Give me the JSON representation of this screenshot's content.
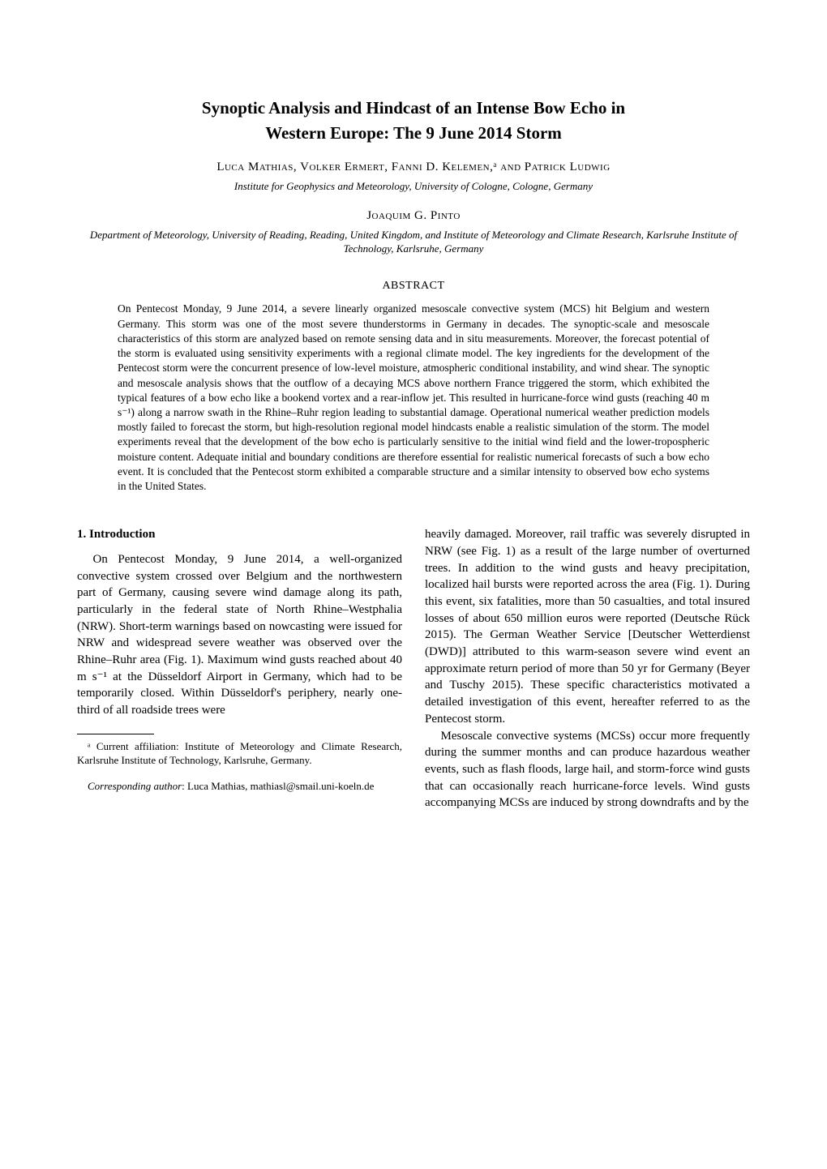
{
  "title_line1": "Synoptic Analysis and Hindcast of an Intense Bow Echo in",
  "title_line2": "Western Europe: The 9 June 2014 Storm",
  "authors1": "Luca Mathias, Volker Ermert, Fanni D. Kelemen,ᵃ and Patrick Ludwig",
  "affiliation1": "Institute for Geophysics and Meteorology, University of Cologne, Cologne, Germany",
  "authors2": "Joaquim G. Pinto",
  "affiliation2": "Department of Meteorology, University of Reading, Reading, United Kingdom, and Institute of Meteorology and Climate Research, Karlsruhe Institute of Technology, Karlsruhe, Germany",
  "abstract_heading": "ABSTRACT",
  "abstract_body": "On Pentecost Monday, 9 June 2014, a severe linearly organized mesoscale convective system (MCS) hit Belgium and western Germany. This storm was one of the most severe thunderstorms in Germany in decades. The synoptic-scale and mesoscale characteristics of this storm are analyzed based on remote sensing data and in situ measurements. Moreover, the forecast potential of the storm is evaluated using sensitivity experiments with a regional climate model. The key ingredients for the development of the Pentecost storm were the concurrent presence of low-level moisture, atmospheric conditional instability, and wind shear. The synoptic and mesoscale analysis shows that the outflow of a decaying MCS above northern France triggered the storm, which exhibited the typical features of a bow echo like a bookend vortex and a rear-inflow jet. This resulted in hurricane-force wind gusts (reaching 40 m s⁻¹) along a narrow swath in the Rhine–Ruhr region leading to substantial damage. Operational numerical weather prediction models mostly failed to forecast the storm, but high-resolution regional model hindcasts enable a realistic simulation of the storm. The model experiments reveal that the development of the bow echo is particularly sensitive to the initial wind field and the lower-tropospheric moisture content. Adequate initial and boundary conditions are therefore essential for realistic numerical forecasts of such a bow echo event. It is concluded that the Pentecost storm exhibited a comparable structure and a similar intensity to observed bow echo systems in the United States.",
  "section1_heading": "1. Introduction",
  "col_left_p1": "On Pentecost Monday, 9 June 2014, a well-organized convective system crossed over Belgium and the northwestern part of Germany, causing severe wind damage along its path, particularly in the federal state of North Rhine–Westphalia (NRW). Short-term warnings based on nowcasting were issued for NRW and widespread severe weather was observed over the Rhine–Ruhr area (Fig. 1). Maximum wind gusts reached about 40 m s⁻¹ at the Düsseldorf Airport in Germany, which had to be temporarily closed. Within Düsseldorf's periphery, nearly one-third of all roadside trees were",
  "footnote_a": "ᵃ Current affiliation: Institute of Meteorology and Climate Research, Karlsruhe Institute of Technology, Karlsruhe, Germany.",
  "corresponding_label": "Corresponding author",
  "corresponding_text": ": Luca Mathias, mathiasl@smail.uni-koeln.de",
  "col_right_p1": "heavily damaged. Moreover, rail traffic was severely disrupted in NRW (see Fig. 1) as a result of the large number of overturned trees. In addition to the wind gusts and heavy precipitation, localized hail bursts were reported across the area (Fig. 1). During this event, six fatalities, more than 50 casualties, and total insured losses of about 650 million euros were reported (Deutsche Rück 2015). The German Weather Service [Deutscher Wetterdienst (DWD)] attributed to this warm-season severe wind event an approximate return period of more than 50 yr for Germany (Beyer and Tuschy 2015). These specific characteristics motivated a detailed investigation of this event, hereafter referred to as the Pentecost storm.",
  "col_right_p2": "Mesoscale convective systems (MCSs) occur more frequently during the summer months and can produce hazardous weather events, such as flash floods, large hail, and storm-force wind gusts that can occasionally reach hurricane-force levels. Wind gusts accompanying MCSs are induced by strong downdrafts and by the"
}
